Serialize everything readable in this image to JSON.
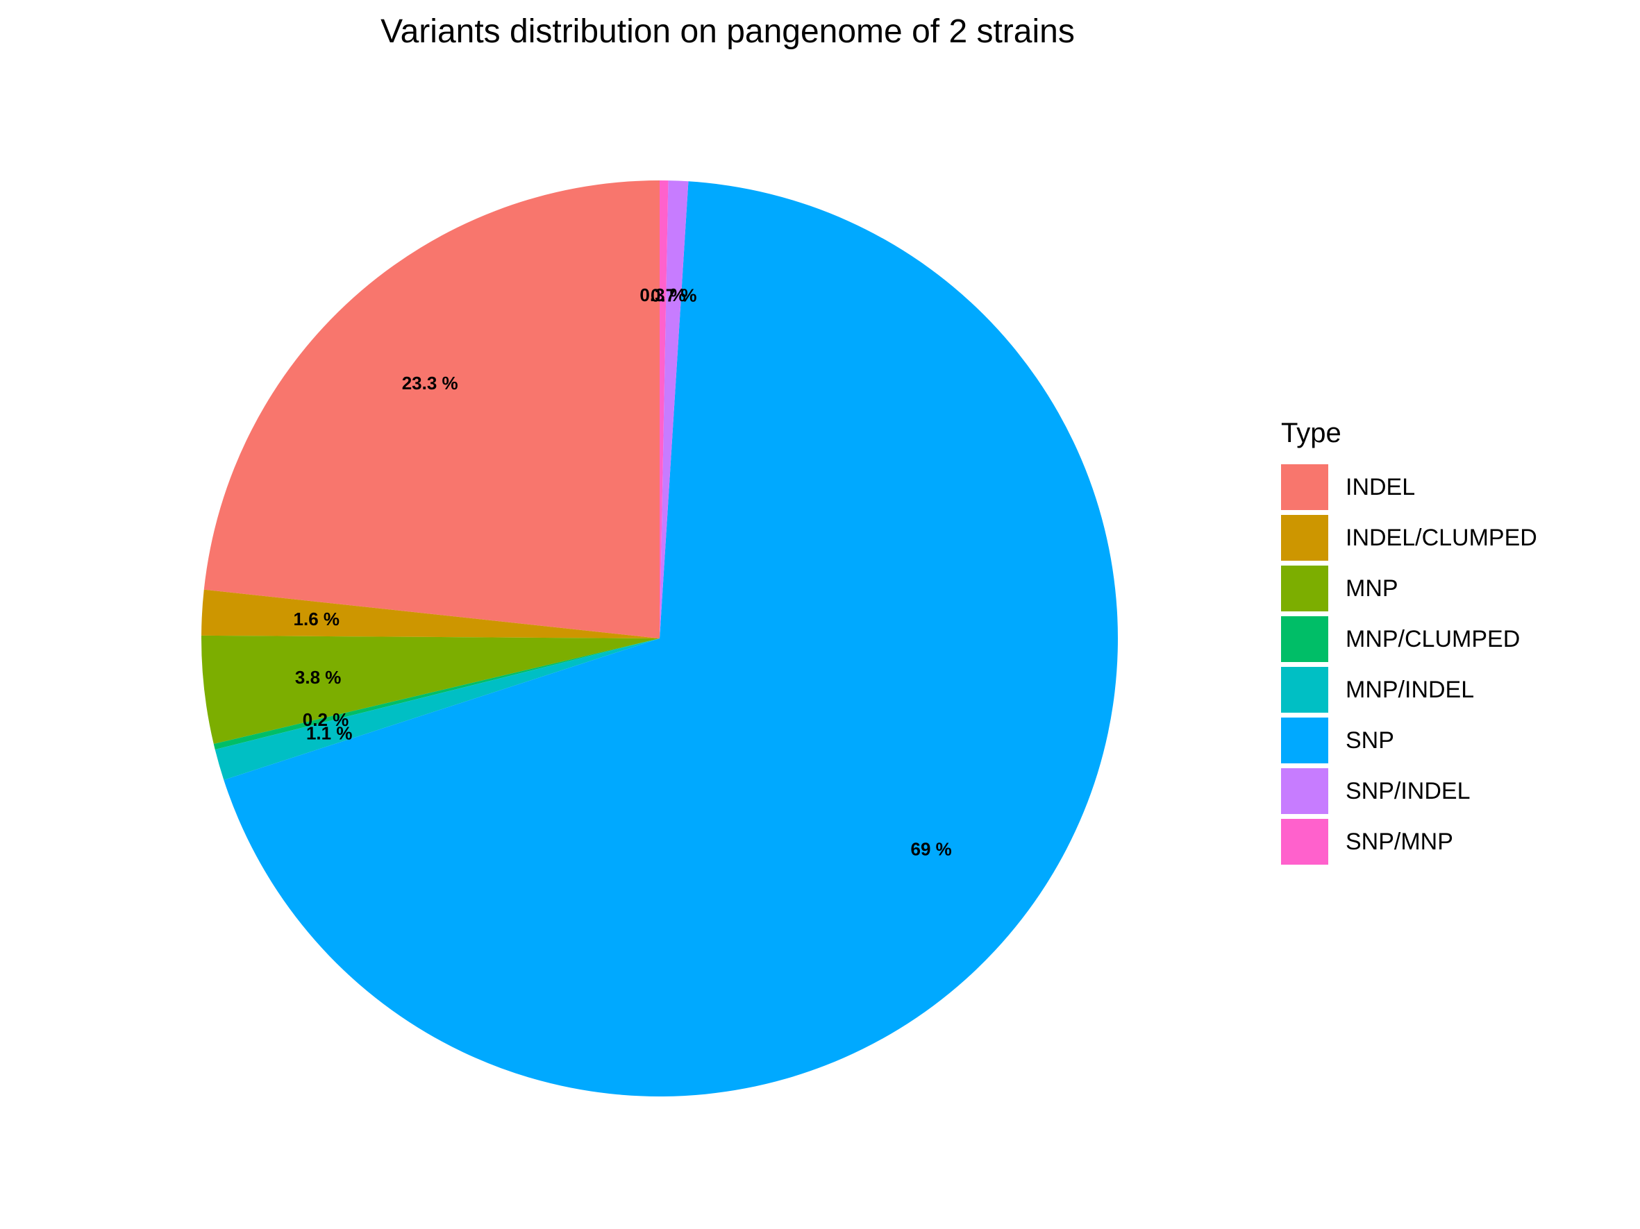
{
  "chart_data": {
    "type": "pie",
    "title": "Variants distribution on pangenome of 2 strains",
    "legend_title": "Type",
    "legend_position": "right",
    "slices": [
      {
        "name": "INDEL",
        "value": 23.3,
        "label": "23.3 %",
        "color": "#F8766D"
      },
      {
        "name": "INDEL/CLUMPED",
        "value": 1.6,
        "label": "1.6 %",
        "color": "#CD9600"
      },
      {
        "name": "MNP",
        "value": 3.8,
        "label": "3.8 %",
        "color": "#7CAE00"
      },
      {
        "name": "MNP/CLUMPED",
        "value": 0.2,
        "label": "0.2 %",
        "color": "#00BE67"
      },
      {
        "name": "MNP/INDEL",
        "value": 1.1,
        "label": "1.1 %",
        "color": "#00BFC4"
      },
      {
        "name": "SNP",
        "value": 69,
        "label": "69 %",
        "color": "#00A9FF"
      },
      {
        "name": "SNP/INDEL",
        "value": 0.7,
        "label": "0.7 %",
        "color": "#C77CFF"
      },
      {
        "name": "SNP/MNP",
        "value": 0.3,
        "label": "0.3 %",
        "color": "#FF61CC"
      }
    ]
  }
}
